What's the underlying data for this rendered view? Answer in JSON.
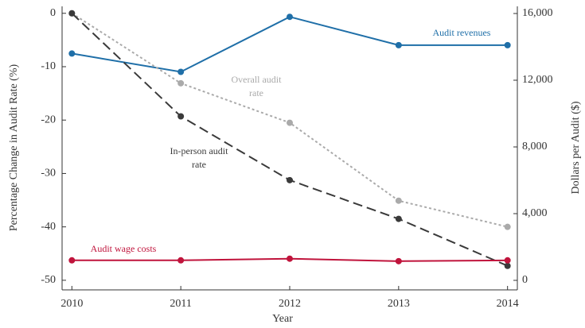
{
  "chart_data": {
    "type": "line",
    "x_label": "Year",
    "y_label": "Percentage Change in Audit Rate (%)",
    "y2_label": "Dollars per Audit ($)",
    "x": [
      2010,
      2011,
      2012,
      2013,
      2014
    ],
    "xlim": [
      2009.91,
      2014.09
    ],
    "xticks": [
      2010,
      2011,
      2012,
      2013,
      2014
    ],
    "ylim": [
      -51.8,
      1.3
    ],
    "yticks": [
      0,
      -10,
      -20,
      -30,
      -40,
      -50
    ],
    "y2lim": [
      -571,
      16428
    ],
    "y2ticks": [
      {
        "value": 16000,
        "label": "16,000"
      },
      {
        "value": 12000,
        "label": "12,000"
      },
      {
        "value": 8000,
        "label": "8,000"
      },
      {
        "value": 4000,
        "label": "4,000"
      },
      0
    ],
    "series": [
      {
        "name": "Audit revenues",
        "color": "#1f6fa8",
        "axis": "y2",
        "style": "solid",
        "values": [
          13600,
          12500,
          15800,
          14100,
          14100
        ]
      },
      {
        "name": "Overall audit rate",
        "color": "#aaaaaa",
        "style": "dotted",
        "values": [
          0,
          -13.1,
          -20.5,
          -35.1,
          -40.0
        ]
      },
      {
        "name": "In-person audit rate",
        "color": "#3a3a3a",
        "style": "dashed",
        "values": [
          0,
          -19.3,
          -31.25,
          -38.5,
          -47.3
        ]
      },
      {
        "name": "Audit wage costs",
        "color": "#c0143c",
        "axis": "y2",
        "style": "solid",
        "values": [
          1200,
          1200,
          1300,
          1150,
          1200
        ]
      }
    ]
  }
}
